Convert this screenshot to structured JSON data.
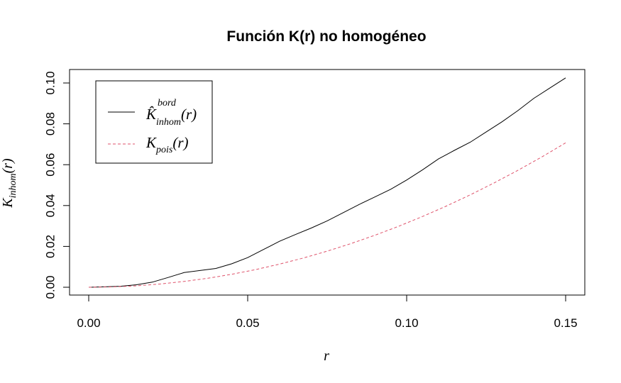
{
  "chart_data": {
    "type": "line",
    "title": "Función K(r) no homogéneo",
    "xlabel": "r",
    "ylabel": "Kinhom(r)",
    "xlim": [
      0,
      0.15
    ],
    "ylim": [
      0,
      0.102
    ],
    "x_ticks": [
      "0.00",
      "0.05",
      "0.10",
      "0.15"
    ],
    "y_ticks": [
      "0.00",
      "0.02",
      "0.04",
      "0.06",
      "0.08",
      "0.10"
    ],
    "legend_position": "top-left",
    "series": [
      {
        "name": "K̂inhom^bord(r)",
        "color": "#000000",
        "style": "solid",
        "x": [
          0,
          0.005,
          0.01,
          0.015,
          0.02,
          0.025,
          0.03,
          0.035,
          0.04,
          0.045,
          0.05,
          0.055,
          0.06,
          0.065,
          0.07,
          0.075,
          0.08,
          0.085,
          0.09,
          0.095,
          0.1,
          0.105,
          0.11,
          0.115,
          0.12,
          0.125,
          0.13,
          0.135,
          0.14,
          0.145,
          0.15
        ],
        "values": [
          0,
          0.0002,
          0.0005,
          0.0012,
          0.0025,
          0.0048,
          0.0072,
          0.0082,
          0.0092,
          0.0115,
          0.0145,
          0.0185,
          0.0225,
          0.0258,
          0.029,
          0.0325,
          0.0365,
          0.0405,
          0.0442,
          0.048,
          0.0525,
          0.0575,
          0.0628,
          0.067,
          0.071,
          0.076,
          0.081,
          0.0865,
          0.0925,
          0.0975,
          0.1025
        ]
      },
      {
        "name": "Kpois(r)",
        "color": "#DF536B",
        "style": "dashed",
        "x": [
          0,
          0.0075,
          0.015,
          0.0225,
          0.03,
          0.0375,
          0.045,
          0.0525,
          0.06,
          0.0675,
          0.075,
          0.0825,
          0.09,
          0.0975,
          0.105,
          0.1125,
          0.12,
          0.1275,
          0.135,
          0.1425,
          0.15
        ],
        "values": [
          0,
          0.00018,
          0.00071,
          0.00159,
          0.00283,
          0.00442,
          0.00636,
          0.00866,
          0.01131,
          0.01431,
          0.01767,
          0.02138,
          0.02545,
          0.02986,
          0.03464,
          0.03976,
          0.04524,
          0.05107,
          0.05726,
          0.0638,
          0.07069
        ]
      }
    ],
    "legend": {
      "entries": [
        {
          "base": "K̂",
          "sub": "inhom",
          "sup": "bord",
          "tail": "(r)"
        },
        {
          "base": "K",
          "sub": "pois",
          "sup": "",
          "tail": "(r)"
        }
      ]
    },
    "ylabel_parts": {
      "base": "K",
      "sub": "inhom",
      "tail": "(r)"
    }
  }
}
